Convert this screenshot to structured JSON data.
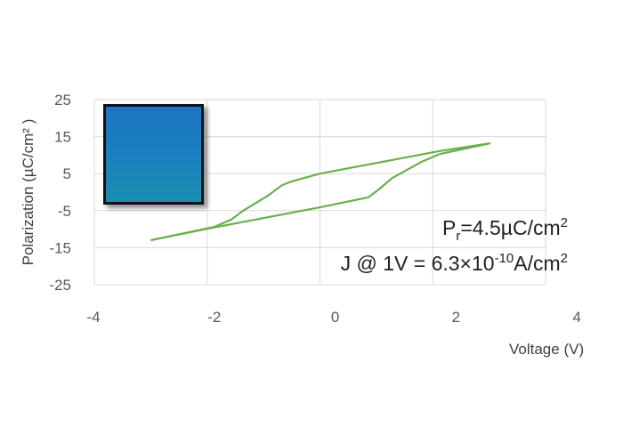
{
  "chart_data": {
    "type": "line",
    "xlabel": "Voltage (V)",
    "ylabel": "Polarization (µC/cm² )",
    "xlim": [
      -4,
      4
    ],
    "ylim": [
      -25,
      25
    ],
    "xticks": [
      "-4",
      "-2",
      "0",
      "2",
      "4"
    ],
    "yticks": [
      "25",
      "15",
      "5",
      "-5",
      "-15",
      "-25"
    ],
    "grid": true,
    "line_color": "#6ab04c",
    "series": [
      {
        "x": [
          3.02,
          2.12,
          0,
          -0.5,
          -0.67,
          -0.93,
          -1.36,
          -1.57,
          -1.88,
          -3.0
        ],
        "y": [
          13.2,
          11.1,
          5.0,
          2.9,
          1.9,
          -1.0,
          -5.0,
          -7.4,
          -9.4,
          -13.0
        ]
      },
      {
        "x": [
          -3.0,
          -2.0,
          0,
          0.86,
          1.04,
          1.28,
          1.8,
          2.12,
          3.02
        ],
        "y": [
          -13.0,
          -9.9,
          -4.1,
          -1.4,
          0.7,
          3.8,
          8.2,
          10.3,
          13.2
        ]
      }
    ],
    "annotations": {
      "pr_prefix": "P",
      "pr_sub": "r",
      "pr_value": "=4.5µC/cm",
      "pr_sup": "2",
      "j_prefix": "J @ 1V = 6.3×10",
      "j_exp": "-10",
      "j_unit": "A/cm",
      "j_sup": "2"
    },
    "inset_image": "blue film sample photo"
  }
}
